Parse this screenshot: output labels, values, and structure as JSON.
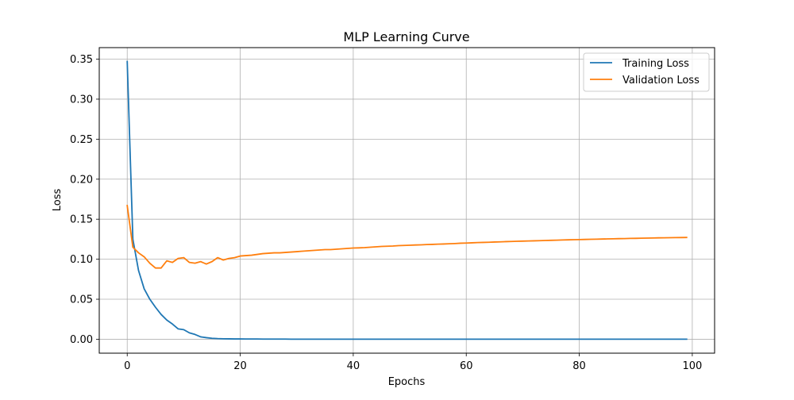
{
  "chart_data": {
    "type": "line",
    "title": "MLP Learning Curve",
    "xlabel": "Epochs",
    "ylabel": "Loss",
    "xlim": [
      -4.95,
      103.95
    ],
    "ylim": [
      -0.0174,
      0.3644
    ],
    "xticks": [
      0,
      20,
      40,
      60,
      80,
      100
    ],
    "yticks": [
      0.0,
      0.05,
      0.1,
      0.15,
      0.2,
      0.25,
      0.3,
      0.35
    ],
    "xtick_labels": [
      "0",
      "20",
      "40",
      "60",
      "80",
      "100"
    ],
    "ytick_labels": [
      "0.00",
      "0.05",
      "0.10",
      "0.15",
      "0.20",
      "0.25",
      "0.30",
      "0.35"
    ],
    "grid": true,
    "legend_position": "upper right",
    "series": [
      {
        "name": "Training Loss",
        "color": "#1f77b4",
        "values": [
          0.347,
          0.125,
          0.086,
          0.063,
          0.05,
          0.04,
          0.031,
          0.024,
          0.019,
          0.013,
          0.012,
          0.008,
          0.006,
          0.003,
          0.002,
          0.0012,
          0.0008,
          0.0006,
          0.0005,
          0.0004,
          0.0004,
          0.0003,
          0.0003,
          0.0003,
          0.0002,
          0.0002,
          0.0002,
          0.0002,
          0.0002,
          0.0001,
          0.0001,
          0.0001,
          0.0001,
          0.0001,
          0.0001,
          0.0001,
          0.0001,
          0.0001,
          0.0001,
          0.0001,
          0.0001,
          0.0001,
          0.0001,
          0.0001,
          0.0001,
          0.0001,
          0.0001,
          0.0001,
          0.0001,
          0.0001,
          0.0001,
          0.0001,
          0.0001,
          0.0001,
          0.0001,
          0.0001,
          0.0001,
          0.0001,
          0.0001,
          0.0001,
          0.0001,
          0.0001,
          0.0001,
          0.0001,
          0.0001,
          0.0001,
          0.0001,
          0.0001,
          0.0001,
          0.0001,
          0.0001,
          0.0001,
          0.0001,
          0.0001,
          0.0001,
          0.0001,
          0.0001,
          0.0001,
          0.0001,
          0.0001,
          0.0001,
          0.0001,
          0.0001,
          0.0001,
          0.0001,
          0.0001,
          0.0001,
          0.0001,
          0.0001,
          0.0001,
          0.0001,
          0.0001,
          0.0001,
          0.0001,
          0.0001,
          0.0001,
          0.0001,
          0.0001,
          0.0001,
          0.0001
        ]
      },
      {
        "name": "Validation Loss",
        "color": "#ff7f0e",
        "values": [
          0.167,
          0.115,
          0.108,
          0.103,
          0.095,
          0.089,
          0.089,
          0.098,
          0.096,
          0.101,
          0.102,
          0.096,
          0.095,
          0.097,
          0.094,
          0.097,
          0.102,
          0.099,
          0.101,
          0.102,
          0.104,
          0.1045,
          0.105,
          0.106,
          0.107,
          0.1075,
          0.108,
          0.108,
          0.1085,
          0.109,
          0.1095,
          0.11,
          0.1105,
          0.111,
          0.1115,
          0.112,
          0.112,
          0.1125,
          0.113,
          0.1135,
          0.114,
          0.1142,
          0.1145,
          0.115,
          0.1155,
          0.116,
          0.1162,
          0.1165,
          0.117,
          0.1172,
          0.1175,
          0.1178,
          0.118,
          0.1183,
          0.1185,
          0.1188,
          0.119,
          0.1193,
          0.1196,
          0.12,
          0.1202,
          0.1205,
          0.1208,
          0.121,
          0.1212,
          0.1215,
          0.1217,
          0.122,
          0.1222,
          0.1224,
          0.1226,
          0.1228,
          0.123,
          0.1232,
          0.1234,
          0.1236,
          0.1238,
          0.124,
          0.1242,
          0.1244,
          0.1245,
          0.1247,
          0.1249,
          0.125,
          0.1252,
          0.1254,
          0.1255,
          0.1257,
          0.1258,
          0.126,
          0.1261,
          0.1263,
          0.1264,
          0.1265,
          0.1267,
          0.1268,
          0.1269,
          0.127,
          0.1271,
          0.1272
        ]
      }
    ]
  }
}
